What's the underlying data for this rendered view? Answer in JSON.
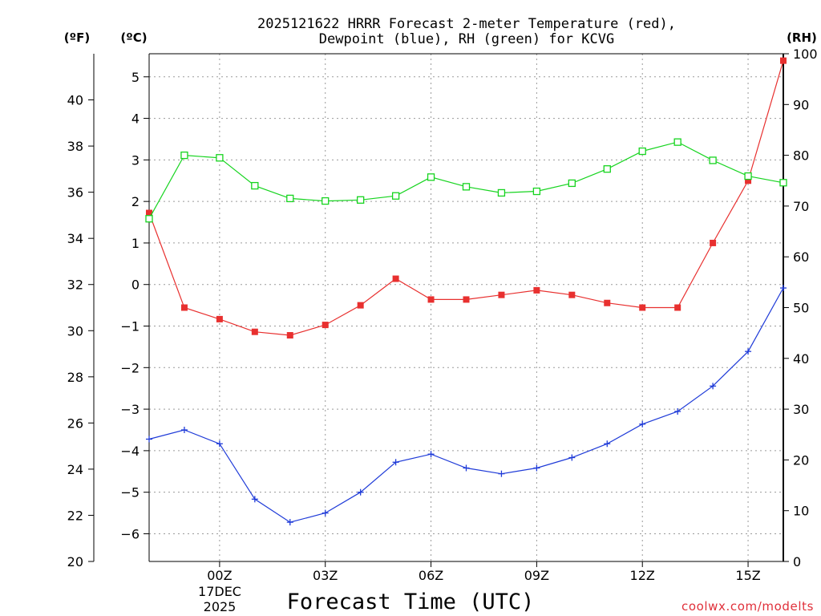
{
  "chart_data": {
    "type": "line",
    "title_line1": "2025121622 HRRR Forecast 2-meter Temperature (red),",
    "title_line2": "Dewpoint (blue), RH (green) for KCVG",
    "xlabel": "Forecast Time (UTC)",
    "credit": "coolwx.com/modelts",
    "axis_label_f": "(ºF)",
    "axis_label_c": "(ºC)",
    "axis_label_rh": "(RH)",
    "date_label_day": "17DEC",
    "date_label_year": "2025",
    "x_hours": [
      -2,
      -1,
      0,
      1,
      2,
      3,
      4,
      5,
      6,
      7,
      8,
      9,
      10,
      11,
      12,
      13,
      14,
      15,
      16
    ],
    "x_ticks": [
      {
        "hour": 0,
        "label": "00Z"
      },
      {
        "hour": 3,
        "label": "03Z"
      },
      {
        "hour": 6,
        "label": "06Z"
      },
      {
        "hour": 9,
        "label": "09Z"
      },
      {
        "hour": 12,
        "label": "12Z"
      },
      {
        "hour": 15,
        "label": "15Z"
      }
    ],
    "xlim": [
      -2,
      16
    ],
    "y_celsius": {
      "min": -6.667,
      "max": 5.556,
      "ticks": [
        5,
        4,
        3,
        2,
        1,
        0,
        -1,
        -2,
        -3,
        -4,
        -5,
        -6
      ]
    },
    "y_fahrenheit": {
      "min": 20,
      "max": 42,
      "ticks": [
        20,
        22,
        24,
        26,
        28,
        30,
        32,
        34,
        36,
        38,
        40
      ]
    },
    "y_rh": {
      "min": 0,
      "max": 100,
      "ticks": [
        0,
        10,
        20,
        30,
        40,
        50,
        60,
        70,
        80,
        90,
        100
      ]
    },
    "series": [
      {
        "name": "2-meter Temperature",
        "unit": "F",
        "color": "#e8302f",
        "marker": "filled-square",
        "values": [
          35.1,
          31.0,
          30.5,
          29.95,
          29.8,
          30.25,
          31.1,
          32.25,
          31.35,
          31.35,
          31.55,
          31.75,
          31.55,
          31.2,
          31.0,
          31.0,
          33.8,
          36.5,
          41.7
        ]
      },
      {
        "name": "Dewpoint",
        "unit": "F",
        "color": "#1f3bd8",
        "marker": "plus",
        "values": [
          25.3,
          25.7,
          25.1,
          22.7,
          21.7,
          22.1,
          23.0,
          24.3,
          24.65,
          24.05,
          23.8,
          24.05,
          24.5,
          25.1,
          25.95,
          26.5,
          27.6,
          29.1,
          31.85
        ]
      },
      {
        "name": "RH",
        "unit": "%",
        "color": "#16d41f",
        "marker": "open-square",
        "values": [
          67.5,
          80.0,
          79.5,
          74.0,
          71.5,
          71.0,
          71.2,
          72.0,
          75.7,
          73.8,
          72.6,
          72.9,
          74.5,
          77.3,
          80.8,
          82.6,
          79.0,
          75.9,
          74.6
        ]
      }
    ]
  }
}
